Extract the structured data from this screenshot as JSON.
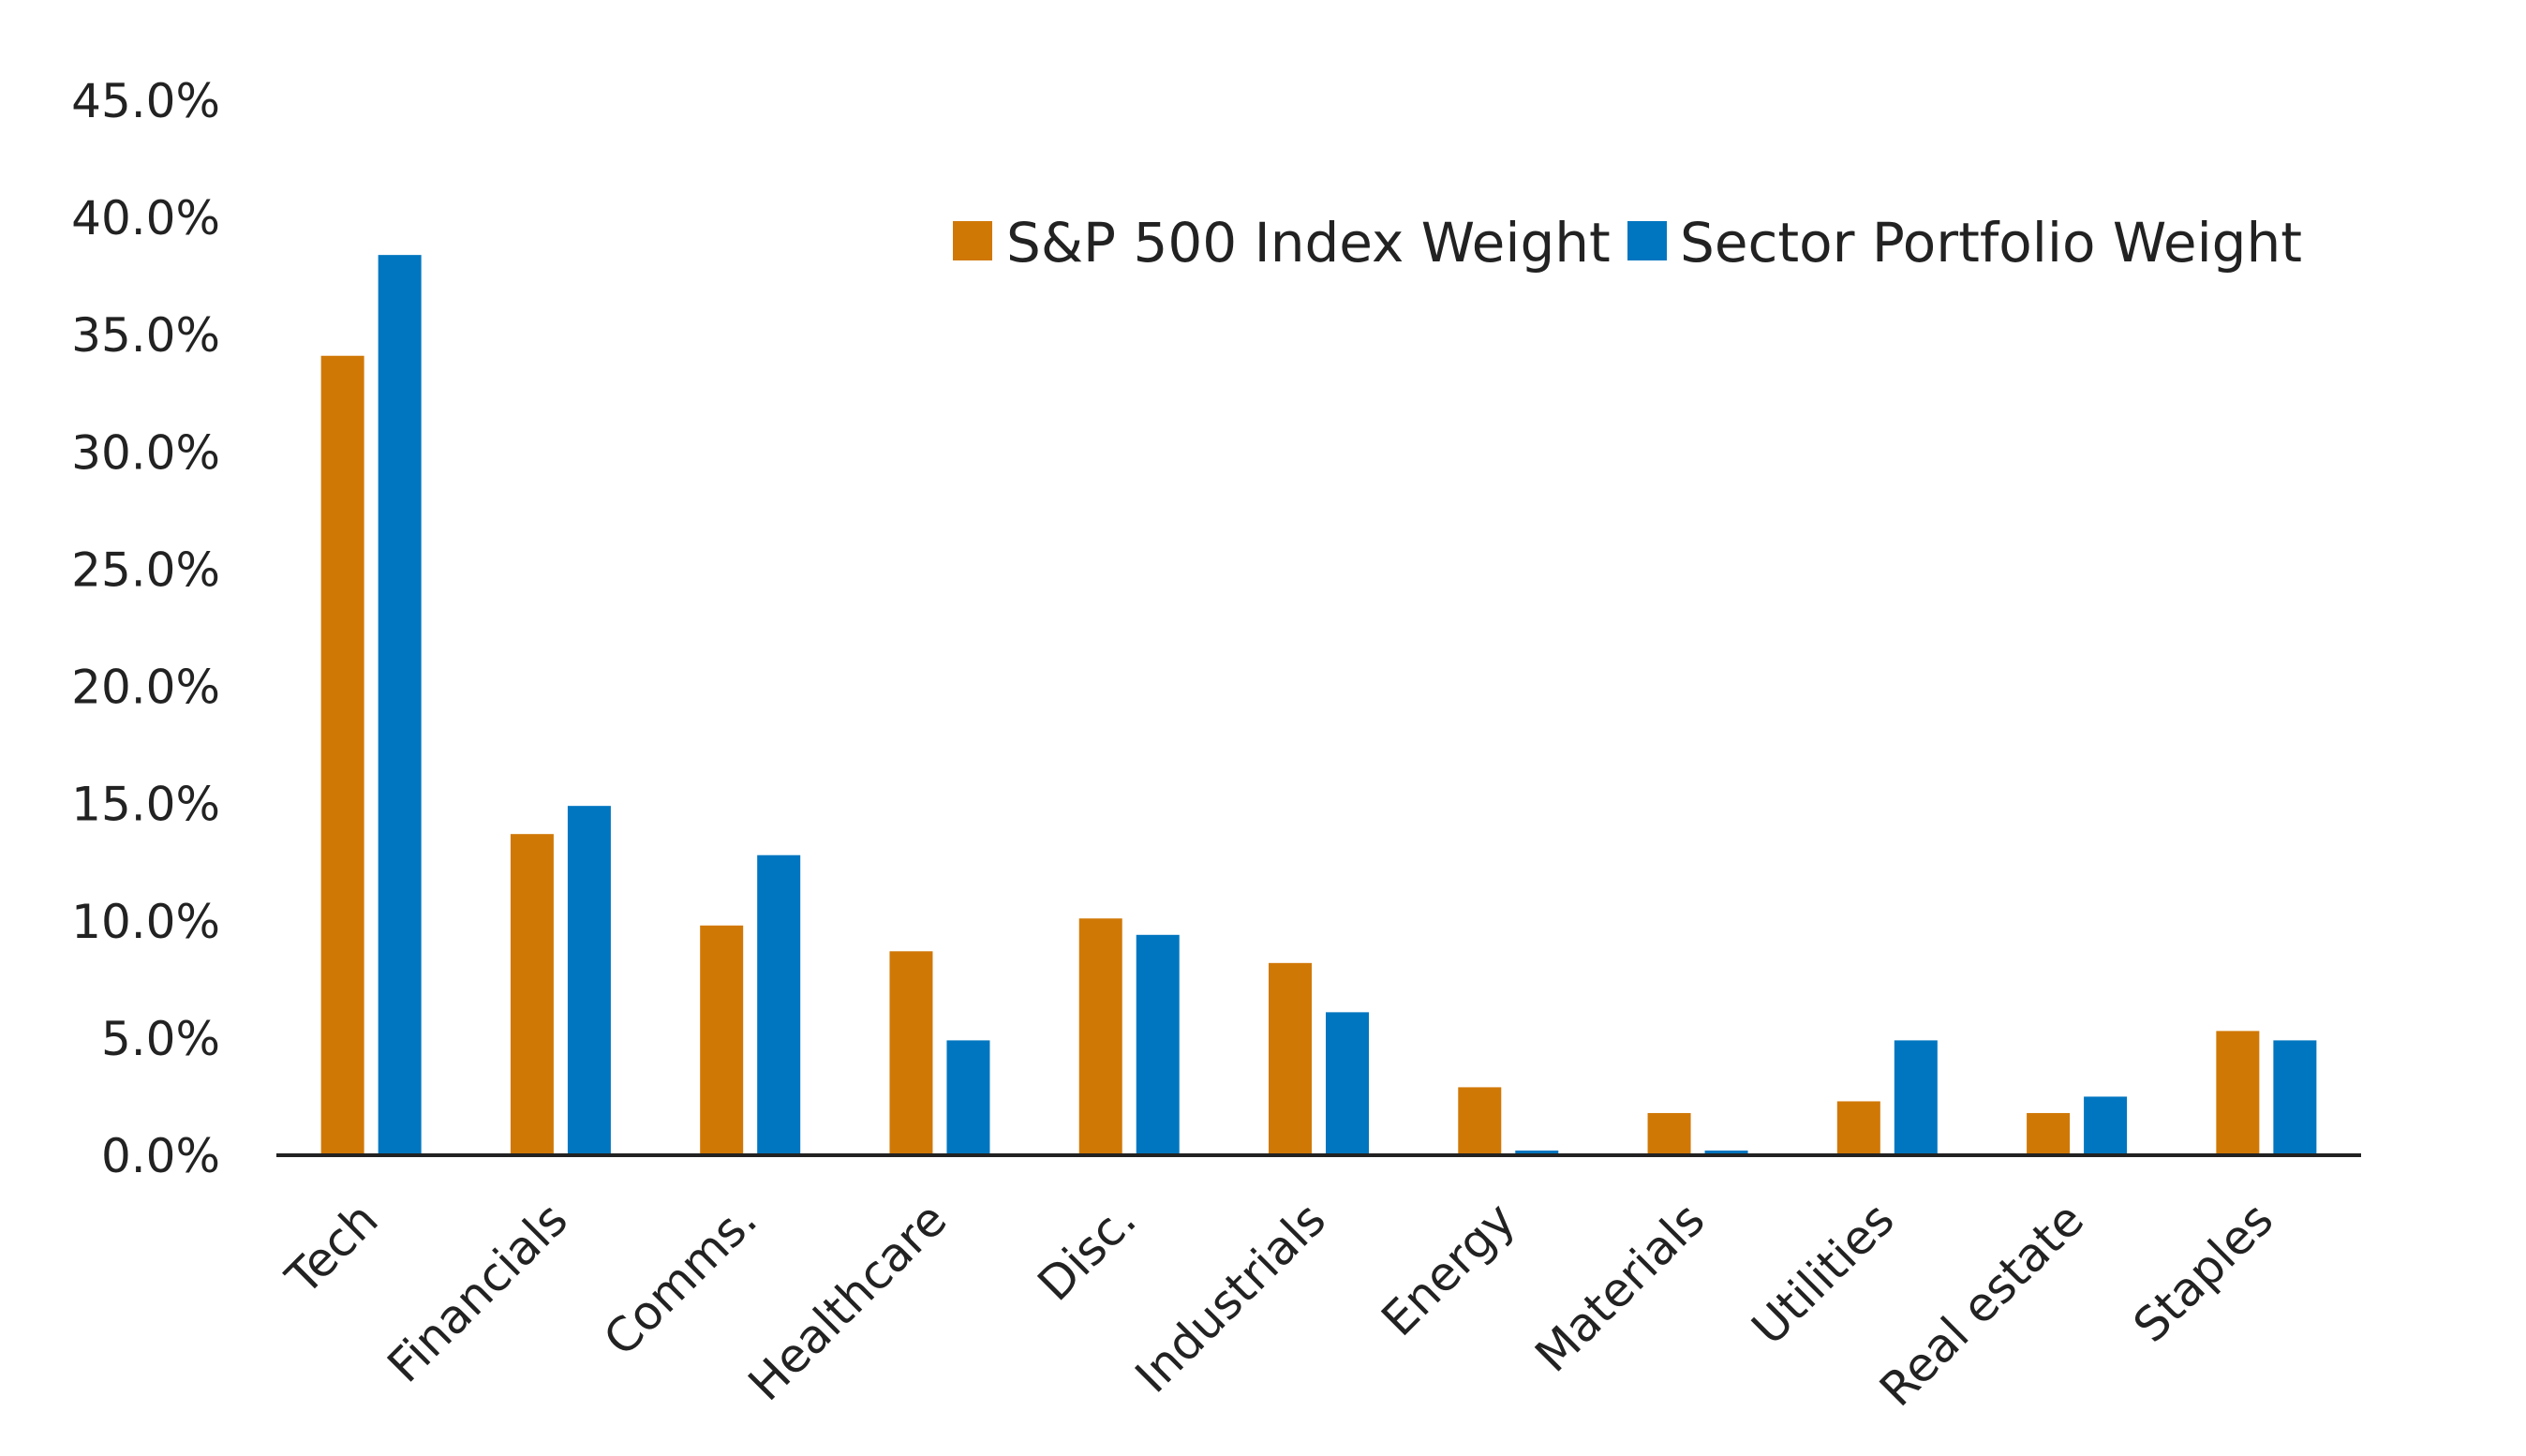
{
  "chart_data": {
    "type": "bar",
    "categories": [
      "Tech",
      "Financials",
      "Comms.",
      "Healthcare",
      "Disc.",
      "Industrials",
      "Energy",
      "Materials",
      "Utilities",
      "Real estate",
      "Staples"
    ],
    "series": [
      {
        "name": "S&P 500 Index Weight",
        "color": "#D07806",
        "values": [
          34.1,
          13.7,
          9.8,
          8.7,
          10.1,
          8.2,
          2.9,
          1.8,
          2.3,
          1.8,
          5.3
        ]
      },
      {
        "name": "Sector Portfolio Weight",
        "color": "#0076C0",
        "values": [
          38.4,
          14.9,
          12.8,
          4.9,
          9.4,
          6.1,
          0.2,
          0.2,
          4.9,
          2.5,
          4.9
        ]
      }
    ],
    "yticks": [
      "0.0%",
      "5.0%",
      "10.0%",
      "15.0%",
      "20.0%",
      "25.0%",
      "30.0%",
      "35.0%",
      "40.0%",
      "45.0%"
    ],
    "ylim": [
      0,
      45
    ],
    "grid": false,
    "legend_position": "top-right",
    "title": "",
    "xlabel": "",
    "ylabel": ""
  }
}
